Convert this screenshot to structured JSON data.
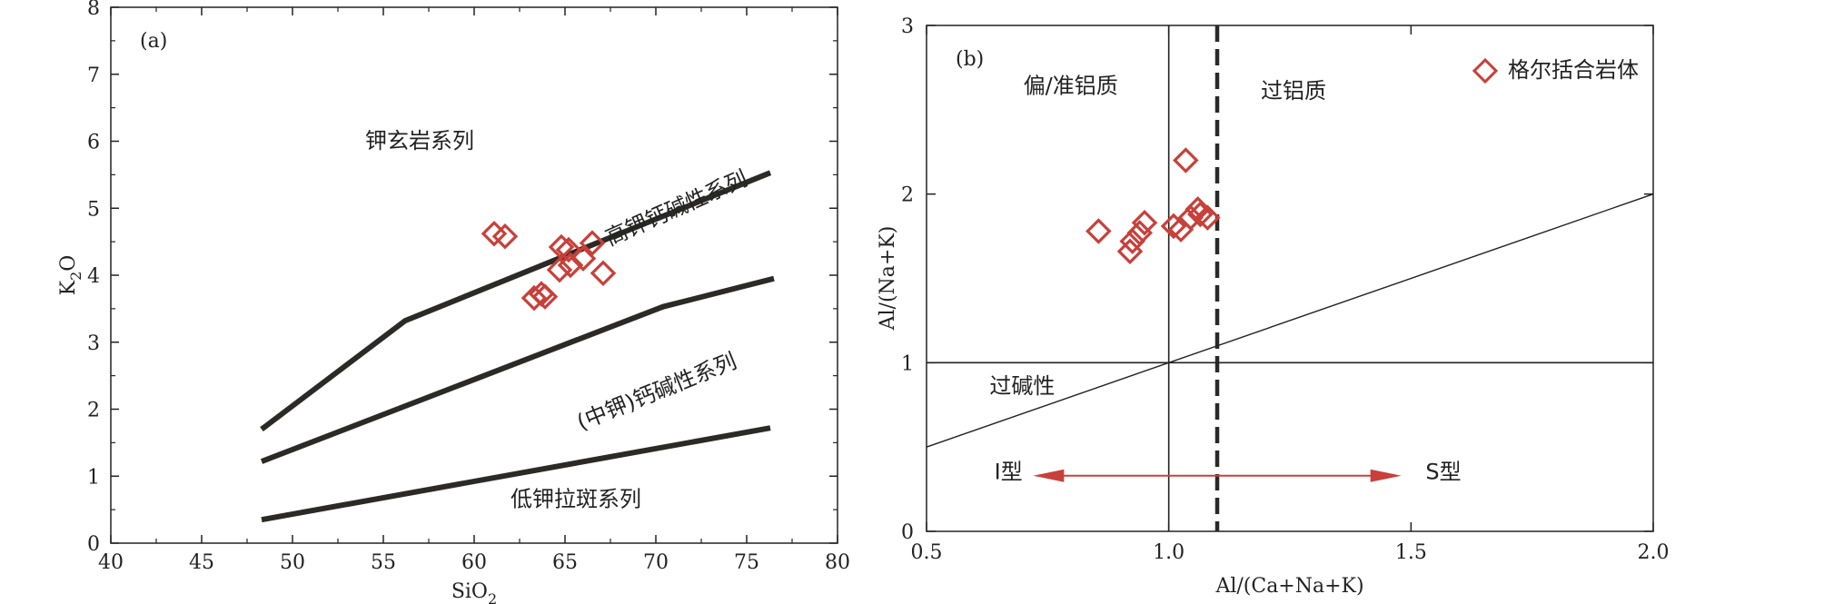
{
  "chart_data": [
    {
      "type": "scatter",
      "panel_label": "(a)",
      "xlabel_main": "SiO",
      "xlabel_sub": "2",
      "ylabel_main": "K",
      "ylabel_sub": "2",
      "ylabel_tail": "O",
      "xlim": [
        40,
        80
      ],
      "ylim": [
        0,
        8
      ],
      "xticks": [
        "40",
        "45",
        "50",
        "55",
        "60",
        "65",
        "70",
        "75",
        "80"
      ],
      "yticks": [
        "0",
        "1",
        "2",
        "3",
        "4",
        "5",
        "6",
        "7",
        "8"
      ],
      "grid": false,
      "boundaries": [
        {
          "name": "upper",
          "points": [
            [
              48.3,
              1.7
            ],
            [
              56.2,
              3.32
            ],
            [
              76.3,
              5.53
            ]
          ]
        },
        {
          "name": "middle",
          "points": [
            [
              48.3,
              1.22
            ],
            [
              70.4,
              3.53
            ],
            [
              76.5,
              3.95
            ]
          ]
        },
        {
          "name": "lower",
          "points": [
            [
              48.3,
              0.35
            ],
            [
              76.3,
              1.72
            ]
          ]
        }
      ],
      "field_labels": [
        {
          "text": "钾玄岩系列",
          "x": 57,
          "y": 5.9,
          "angle": 0
        },
        {
          "text": "高钾钙碱性系列",
          "x": 71.3,
          "y": 4.9,
          "angle": -24
        },
        {
          "text": "(中钾)钙碱性系列",
          "x": 70.2,
          "y": 2.16,
          "angle": -22
        },
        {
          "text": "低钾拉斑系列",
          "x": 65.6,
          "y": 0.55,
          "angle": 0
        }
      ],
      "points": [
        {
          "x": 61.1,
          "y": 4.62
        },
        {
          "x": 61.7,
          "y": 4.58
        },
        {
          "x": 64.8,
          "y": 4.42
        },
        {
          "x": 65.2,
          "y": 4.38
        },
        {
          "x": 66.5,
          "y": 4.48
        },
        {
          "x": 64.7,
          "y": 4.08
        },
        {
          "x": 65.3,
          "y": 4.15
        },
        {
          "x": 66.0,
          "y": 4.25
        },
        {
          "x": 67.1,
          "y": 4.03
        },
        {
          "x": 63.3,
          "y": 3.66
        },
        {
          "x": 63.7,
          "y": 3.72
        },
        {
          "x": 63.9,
          "y": 3.68
        }
      ]
    },
    {
      "type": "scatter",
      "panel_label": "(b)",
      "xlabel": "Al/(Ca+Na+K)",
      "ylabel": "Al/(Na+K)",
      "xlim": [
        0.5,
        2.0
      ],
      "ylim": [
        0,
        3
      ],
      "xticks": [
        "0.5",
        "1.0",
        "1.5",
        "2.0"
      ],
      "yticks": [
        "0",
        "1",
        "2",
        "3"
      ],
      "grid": false,
      "legend": {
        "label": "格尔括合岩体",
        "position": "top-right"
      },
      "reference_lines": {
        "vertical_solid": 1.0,
        "vertical_dashed": 1.1,
        "horizontal": 1.0,
        "diagonal": [
          [
            0.5,
            0.5
          ],
          [
            2.0,
            2.0
          ]
        ]
      },
      "field_labels": [
        {
          "text": "偏/准铝质",
          "x": 0.7,
          "y": 2.6
        },
        {
          "text": "过铝质",
          "x": 1.19,
          "y": 2.57
        },
        {
          "text": "过碱性",
          "x": 0.63,
          "y": 0.82
        },
        {
          "text": "I型",
          "x": 0.64,
          "y": 0.31
        },
        {
          "text": "S型",
          "x": 1.53,
          "y": 0.31
        }
      ],
      "arrow": {
        "from": 0.72,
        "to": 1.48,
        "y": 0.33
      },
      "points": [
        {
          "x": 0.855,
          "y": 1.78
        },
        {
          "x": 0.92,
          "y": 1.66
        },
        {
          "x": 0.925,
          "y": 1.72
        },
        {
          "x": 0.94,
          "y": 1.77
        },
        {
          "x": 0.95,
          "y": 1.83
        },
        {
          "x": 1.01,
          "y": 1.81
        },
        {
          "x": 1.025,
          "y": 1.79
        },
        {
          "x": 1.035,
          "y": 2.2
        },
        {
          "x": 1.045,
          "y": 1.86
        },
        {
          "x": 1.06,
          "y": 1.91
        },
        {
          "x": 1.065,
          "y": 1.88
        },
        {
          "x": 1.08,
          "y": 1.86
        }
      ]
    }
  ],
  "colors": {
    "marker": "#c8403a",
    "boundary": "#2b2a28",
    "axis": "#222222",
    "arrow": "#c8403a"
  }
}
